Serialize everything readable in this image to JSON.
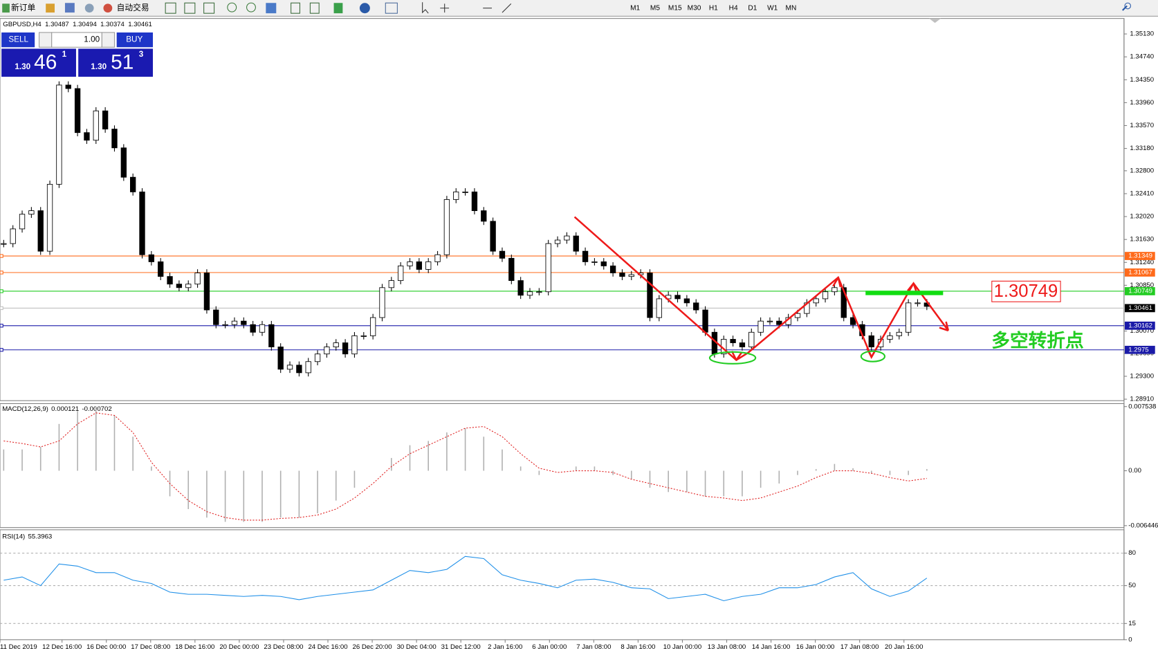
{
  "toolbar": {
    "new_order": "新订单",
    "auto_trading": "自动交易",
    "timeframes": [
      "M1",
      "M5",
      "M15",
      "M30",
      "H1",
      "H4",
      "D1",
      "W1",
      "MN"
    ]
  },
  "trade_panel": {
    "sell": "SELL",
    "buy": "BUY",
    "volume": "1.00",
    "bid": {
      "big": "1.30",
      "pips": "46",
      "fraction": "1"
    },
    "ask": {
      "big": "1.30",
      "pips": "51",
      "fraction": "3"
    }
  },
  "annotations": {
    "price_box": "1.30749",
    "turning_point": "多空转折点"
  },
  "chart_data": [
    {
      "type": "candlestick",
      "title": "GBPUSD,H4",
      "ohlc": [
        1.30487,
        1.30494,
        1.30374,
        1.30461
      ],
      "time_labels": [
        "11 Dec 2019",
        "12 Dec 16:00",
        "16 Dec 00:00",
        "17 Dec 08:00",
        "18 Dec 16:00",
        "20 Dec 00:00",
        "23 Dec 08:00",
        "24 Dec 16:00",
        "26 Dec 20:00",
        "30 Dec 04:00",
        "31 Dec 12:00",
        "2 Jan 16:00",
        "6 Jan 00:00",
        "7 Jan 08:00",
        "8 Jan 16:00",
        "10 Jan 00:00",
        "13 Jan 08:00",
        "14 Jan 16:00",
        "16 Jan 00:00",
        "17 Jan 08:00",
        "20 Jan 16:00"
      ],
      "closes": [
        1.3156,
        1.3181,
        1.3206,
        1.3212,
        1.3143,
        1.3257,
        1.3426,
        1.342,
        1.3345,
        1.3332,
        1.3382,
        1.3351,
        1.3319,
        1.3269,
        1.3244,
        1.3137,
        1.3125,
        1.31,
        1.3087,
        1.3081,
        1.3087,
        1.3106,
        1.3043,
        1.3018,
        1.3018,
        1.3024,
        1.3018,
        1.3005,
        1.3018,
        1.298,
        1.2942,
        1.2949,
        1.2936,
        1.2955,
        1.2968,
        1.298,
        1.2987,
        1.2968,
        1.2999,
        1.2999,
        1.303,
        1.3081,
        1.3093,
        1.3118,
        1.3125,
        1.3112,
        1.3125,
        1.3137,
        1.3231,
        1.3244,
        1.3244,
        1.3212,
        1.3194,
        1.3143,
        1.3131,
        1.3093,
        1.3068,
        1.3074,
        1.3074,
        1.3156,
        1.3162,
        1.3169,
        1.3143,
        1.3125,
        1.3125,
        1.3118,
        1.3106,
        1.31,
        1.3103,
        1.3106,
        1.303,
        1.3062,
        1.3068,
        1.3062,
        1.3055,
        1.3043,
        1.3005,
        1.2968,
        1.2993,
        1.2987,
        1.298,
        1.3005,
        1.3024,
        1.3024,
        1.3018,
        1.303,
        1.3037,
        1.3055,
        1.3062,
        1.3074,
        1.3081,
        1.303,
        1.3018,
        1.2999,
        1.298,
        1.2993,
        1.2999,
        1.3005,
        1.3055,
        1.3055,
        1.3049
      ],
      "ylim": [
        1.28885,
        1.35394
      ],
      "yticks": [
        {
          "value": 1.3513,
          "label": "1.35130"
        },
        {
          "value": 1.3474,
          "label": "1.34740"
        },
        {
          "value": 1.3435,
          "label": "1.34350"
        },
        {
          "value": 1.3396,
          "label": "1.33960"
        },
        {
          "value": 1.3357,
          "label": "1.33570"
        },
        {
          "value": 1.3318,
          "label": "1.33180"
        },
        {
          "value": 1.328,
          "label": "1.32800"
        },
        {
          "value": 1.3241,
          "label": "1.32410"
        },
        {
          "value": 1.3202,
          "label": "1.32020"
        },
        {
          "value": 1.3163,
          "label": "1.31630"
        },
        {
          "value": 1.3124,
          "label": "1.31240"
        },
        {
          "value": 1.3085,
          "label": "1.30850"
        },
        {
          "value": 1.3007,
          "label": "1.30070"
        },
        {
          "value": 1.2969,
          "label": "1.29690"
        },
        {
          "value": 1.293,
          "label": "1.29300"
        },
        {
          "value": 1.2891,
          "label": "1.28910"
        }
      ],
      "levels": [
        {
          "value": 1.31349,
          "color": "#ff6a1a"
        },
        {
          "value": 1.31067,
          "color": "#ff6a1a"
        },
        {
          "value": 1.30749,
          "color": "#22cc22"
        },
        {
          "value": 1.30461,
          "color": "#c0c0c0"
        },
        {
          "value": 1.30162,
          "color": "#1a1aa8"
        },
        {
          "value": 1.2975,
          "color": "#1a1aa8"
        }
      ]
    },
    {
      "type": "histogram",
      "title": "MACD(12,26,9)",
      "readings": [
        0.000121,
        -0.000702
      ],
      "series": [
        {
          "name": "MACD",
          "color": "#b0b0b0",
          "values": [
            0.0025,
            0.0025,
            0.0028,
            0.0055,
            0.007,
            0.0075,
            0.0065,
            0.004,
            0.0005,
            -0.003,
            -0.0045,
            -0.0055,
            -0.006,
            -0.006,
            -0.006,
            -0.0055,
            -0.0055,
            -0.005,
            -0.0035,
            -0.002,
            0,
            0.0015,
            0.003,
            0.0035,
            0.0045,
            0.005,
            0.004,
            0.0025,
            0.0005,
            -0.0005,
            0,
            0.0005,
            0.0005,
            -0.0005,
            -0.001,
            -0.002,
            -0.0025,
            -0.0025,
            -0.003,
            -0.003,
            -0.003,
            -0.002,
            -0.0015,
            -0.0005,
            0.0002,
            0.0008,
            0.0003,
            -0.0003,
            -0.0005,
            -0.0005,
            0.0002
          ]
        },
        {
          "name": "Signal",
          "color": "#e02020",
          "values": [
            0.0035,
            0.0032,
            0.0028,
            0.0035,
            0.0055,
            0.0068,
            0.0065,
            0.0045,
            0.001,
            -0.0015,
            -0.0035,
            -0.0048,
            -0.0055,
            -0.0058,
            -0.0058,
            -0.0056,
            -0.0055,
            -0.0052,
            -0.0045,
            -0.0032,
            -0.0015,
            0.0005,
            0.002,
            0.003,
            0.004,
            0.005,
            0.0052,
            0.004,
            0.002,
            0.0003,
            -0.0002,
            0,
            0,
            -0.0002,
            -0.001,
            -0.0015,
            -0.002,
            -0.0025,
            -0.003,
            -0.0032,
            -0.0035,
            -0.0032,
            -0.0025,
            -0.0018,
            -0.0008,
            0,
            0,
            -0.0003,
            -0.0008,
            -0.0012,
            -0.0009
          ]
        }
      ],
      "ylim": [
        -0.006672,
        0.007885
      ],
      "yticks": [
        0.007538,
        {
          "value": 0,
          "label": "0.00"
        },
        -0.006446
      ]
    },
    {
      "type": "line",
      "title": "RSI(14)",
      "reading": 55.3963,
      "series": [
        {
          "name": "RSI",
          "color": "#1e8fe8",
          "values": [
            55,
            58,
            50,
            70,
            68,
            62,
            62,
            55,
            52,
            44,
            42,
            42,
            41,
            40,
            41,
            40,
            37,
            40,
            42,
            44,
            46,
            55,
            64,
            62,
            65,
            77,
            75,
            60,
            55,
            52,
            48,
            55,
            56,
            53,
            48,
            47,
            38,
            40,
            42,
            36,
            40,
            42,
            48,
            48,
            51,
            58,
            62,
            47,
            40,
            45,
            57
          ]
        }
      ],
      "ylim": [
        0,
        101.6
      ],
      "yticks": [
        80,
        50,
        15,
        0
      ]
    }
  ]
}
